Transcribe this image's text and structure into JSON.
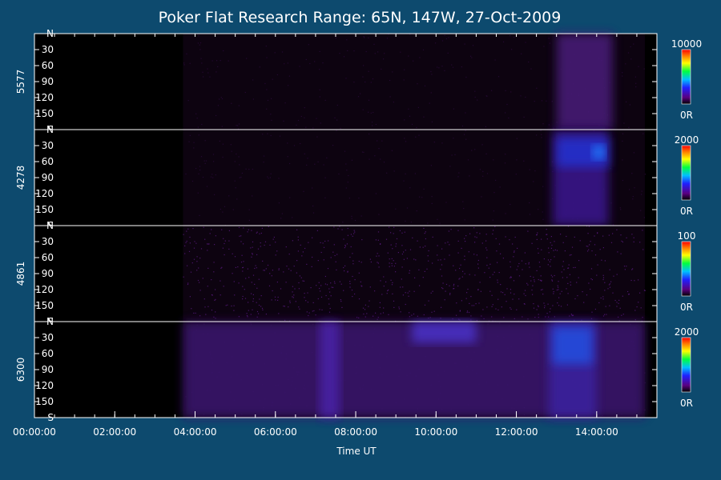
{
  "title": "Poker Flat Research Range: 65N, 147W, 27-Oct-2009",
  "chart_data": {
    "type": "heatmap",
    "title": "Poker Flat Research Range: 65N, 147W, 27-Oct-2009",
    "xlabel": "Time UT",
    "x_tick_labels": [
      "00:00:00",
      "02:00:00",
      "04:00:00",
      "06:00:00",
      "08:00:00",
      "10:00:00",
      "12:00:00",
      "14:00:00"
    ],
    "x_range_hours": [
      0,
      15.5
    ],
    "y_tick_labels": [
      "N",
      "30",
      "60",
      "90",
      "120",
      "150",
      "S"
    ],
    "y_range_deg": [
      0,
      180
    ],
    "colorscale": "rainbow (black-purple-blue-cyan-green-yellow-red)",
    "panels": [
      {
        "label": "5577",
        "colorbar_max": "10000",
        "colorbar_min": "0R",
        "data_start_hour": 3.7,
        "features": [
          {
            "t_start": 13.0,
            "t_end": 14.4,
            "y_start": 0,
            "y_end": 180,
            "level": 0.25,
            "color": "#4a1a7a"
          }
        ]
      },
      {
        "label": "4278",
        "colorbar_max": "2000",
        "colorbar_min": "0R",
        "data_start_hour": 3.7,
        "features": [
          {
            "t_start": 12.9,
            "t_end": 14.3,
            "y_start": 0,
            "y_end": 180,
            "level": 0.35,
            "color": "#3a1590"
          },
          {
            "t_start": 13.0,
            "t_end": 14.3,
            "y_start": 15,
            "y_end": 70,
            "level": 0.6,
            "color": "#2030d0"
          },
          {
            "t_start": 13.9,
            "t_end": 14.2,
            "y_start": 30,
            "y_end": 55,
            "level": 0.75,
            "color": "#2080ff"
          }
        ]
      },
      {
        "label": "4861",
        "colorbar_max": "100",
        "colorbar_min": "0R",
        "data_start_hour": 3.7,
        "features": []
      },
      {
        "label": "6300",
        "colorbar_max": "2000",
        "colorbar_min": "0R",
        "data_start_hour": 3.7,
        "features": [
          {
            "t_start": 3.7,
            "t_end": 15.2,
            "y_start": 0,
            "y_end": 180,
            "level": 0.2,
            "color": "#3a1470"
          },
          {
            "t_start": 7.1,
            "t_end": 7.6,
            "y_start": 0,
            "y_end": 180,
            "level": 0.35,
            "color": "#4a22a8"
          },
          {
            "t_start": 9.4,
            "t_end": 11.0,
            "y_start": 0,
            "y_end": 40,
            "level": 0.45,
            "color": "#4a30c8"
          },
          {
            "t_start": 12.8,
            "t_end": 14.0,
            "y_start": 0,
            "y_end": 180,
            "level": 0.35,
            "color": "#3a22a0"
          },
          {
            "t_start": 12.9,
            "t_end": 13.9,
            "y_start": 10,
            "y_end": 80,
            "level": 0.7,
            "color": "#2050e0"
          }
        ]
      }
    ]
  }
}
